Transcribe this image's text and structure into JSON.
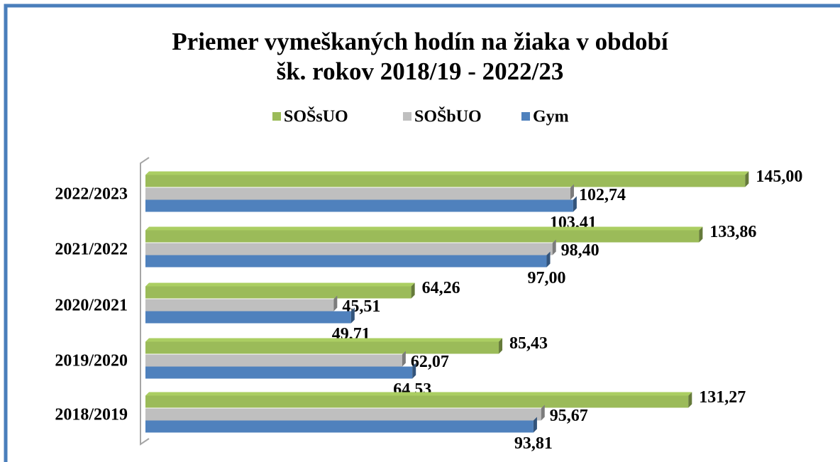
{
  "chart_data": {
    "type": "bar3d_horizontal",
    "title": [
      "Priemer vymeškaných hodín na žiaka v období",
      "šk. rokov 2018/19 - 2022/23"
    ],
    "categories": [
      "2022/2023",
      "2021/2022",
      "2020/2021",
      "2019/2020",
      "2018/2019"
    ],
    "series": [
      {
        "name": "SOŠsUO",
        "color": "#9bbb59",
        "values": [
          145.0,
          133.86,
          64.26,
          85.43,
          131.27
        ],
        "value_labels": [
          "145,00",
          "133,86",
          "64,26",
          "85,43",
          "131,27"
        ]
      },
      {
        "name": "SOŠbUO",
        "color": "#bfbfbf",
        "values": [
          102.74,
          98.4,
          45.51,
          62.07,
          95.67
        ],
        "value_labels": [
          "102,74",
          "98,40",
          "45,51",
          "62,07",
          "95,67"
        ]
      },
      {
        "name": "Gym",
        "color": "#4f81bd",
        "values": [
          103.41,
          97.0,
          49.71,
          64.53,
          93.81
        ],
        "value_labels": [
          "103,41",
          "97,00",
          "49,71",
          "64,53",
          "93,81"
        ]
      }
    ]
  }
}
